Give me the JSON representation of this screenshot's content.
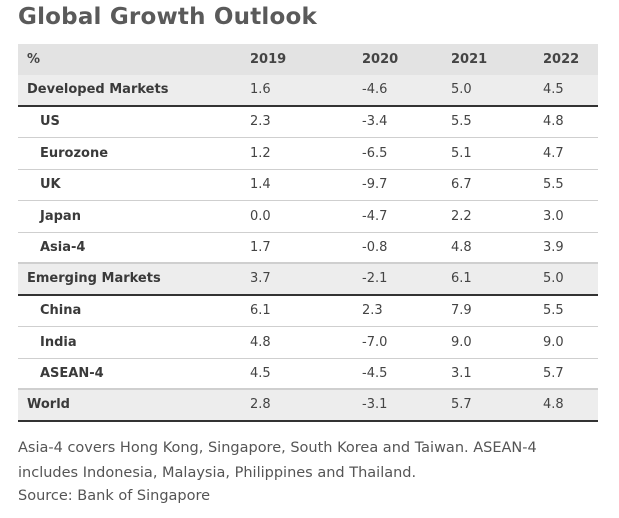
{
  "title": "Global Growth Outlook",
  "table": {
    "header": {
      "label": "%",
      "years": [
        "2019",
        "2020",
        "2021",
        "2022"
      ]
    },
    "rows": [
      {
        "label": "Developed Markets",
        "kind": "main",
        "values": [
          "1.6",
          "-4.6",
          "5.0",
          "4.5"
        ]
      },
      {
        "label": "US",
        "kind": "sub",
        "values": [
          "2.3",
          "-3.4",
          "5.5",
          "4.8"
        ]
      },
      {
        "label": "Eurozone",
        "kind": "sub",
        "values": [
          "1.2",
          "-6.5",
          "5.1",
          "4.7"
        ]
      },
      {
        "label": "UK",
        "kind": "sub",
        "values": [
          "1.4",
          "-9.7",
          "6.7",
          "5.5"
        ]
      },
      {
        "label": "Japan",
        "kind": "sub",
        "values": [
          "0.0",
          "-4.7",
          "2.2",
          "3.0"
        ]
      },
      {
        "label": "Asia-4",
        "kind": "sub",
        "values": [
          "1.7",
          "-0.8",
          "4.8",
          "3.9"
        ]
      },
      {
        "label": "Emerging Markets",
        "kind": "main",
        "values": [
          "3.7",
          "-2.1",
          "6.1",
          "5.0"
        ]
      },
      {
        "label": "China",
        "kind": "sub",
        "values": [
          "6.1",
          "2.3",
          "7.9",
          "5.5"
        ]
      },
      {
        "label": "India",
        "kind": "sub",
        "values": [
          "4.8",
          "-7.0",
          "9.0",
          "9.0"
        ]
      },
      {
        "label": "ASEAN-4",
        "kind": "sub",
        "values": [
          "4.5",
          "-4.5",
          "3.1",
          "5.7"
        ]
      },
      {
        "label": "World",
        "kind": "main",
        "values": [
          "2.8",
          "-3.1",
          "5.7",
          "4.8"
        ]
      }
    ]
  },
  "footnote": {
    "line1": "Asia-4 covers Hong Kong, Singapore, South Korea and Taiwan. ASEAN-4",
    "line2": "includes Indonesia, Malaysia, Philippines and Thailand."
  },
  "source": "Source: Bank of Singapore"
}
